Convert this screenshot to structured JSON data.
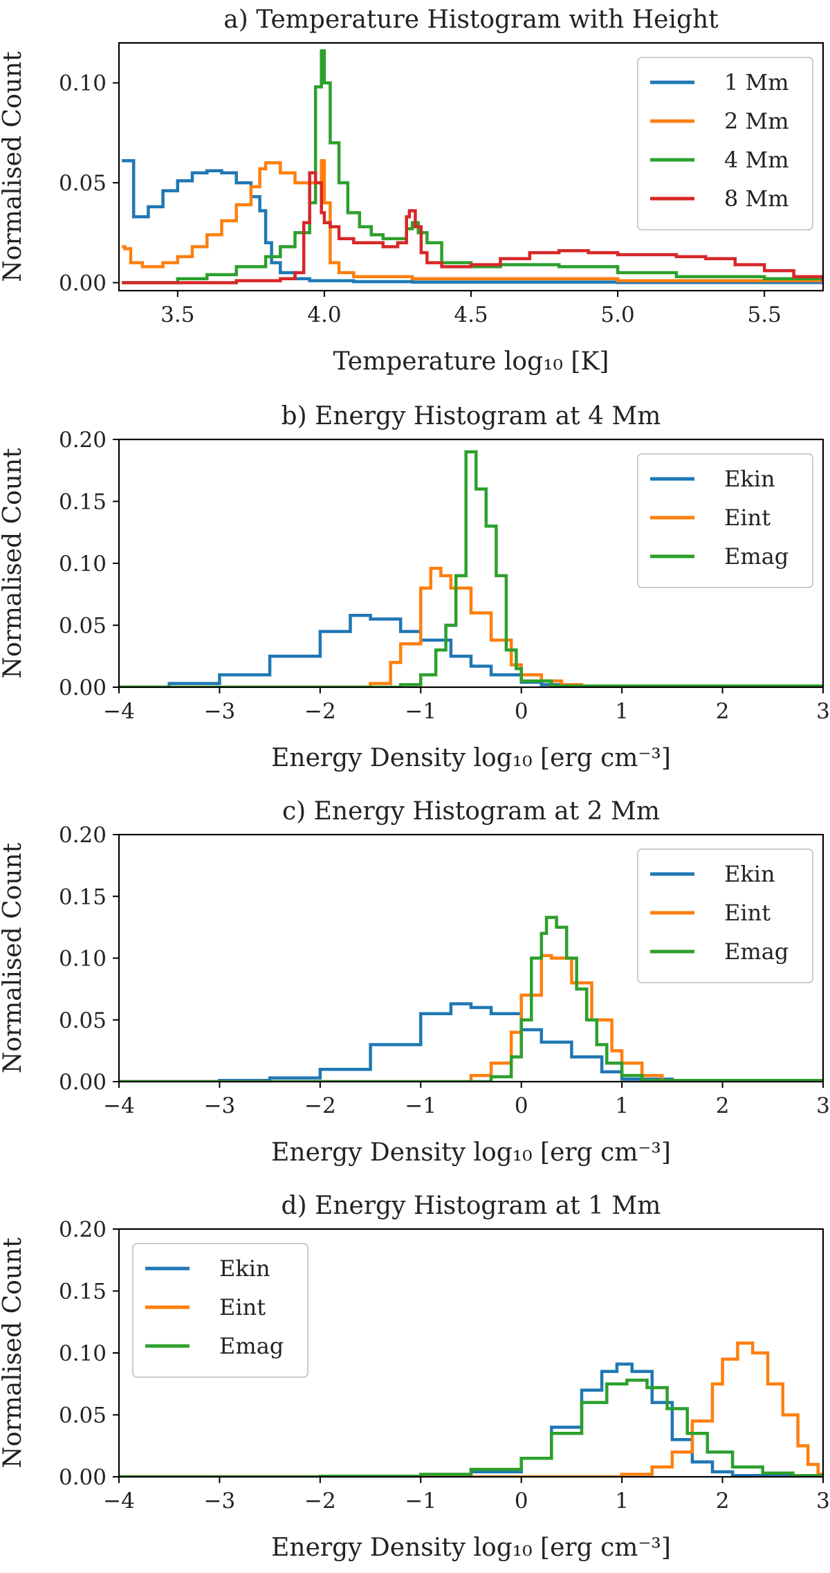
{
  "chart_data": [
    {
      "type": "line",
      "title": "a) Temperature Histogram with Height",
      "xlabel": "Temperature log₁₀ [K]",
      "ylabel": "Normalised Count",
      "xlim": [
        3.3,
        5.7
      ],
      "ylim": [
        -0.004,
        0.12
      ],
      "xticks": [
        3.5,
        4.0,
        4.5,
        5.0,
        5.5
      ],
      "xtick_labels": [
        "3.5",
        "4.0",
        "4.5",
        "5.0",
        "5.5"
      ],
      "yticks": [
        0.0,
        0.05,
        0.1
      ],
      "ytick_labels": [
        "0.00",
        "0.05",
        "0.10"
      ],
      "legend_position": "top-right",
      "series": [
        {
          "name": "1 Mm",
          "color": "#1f77b4",
          "x": [
            3.31,
            3.33,
            3.35,
            3.4,
            3.45,
            3.5,
            3.55,
            3.6,
            3.65,
            3.7,
            3.75,
            3.78,
            3.8,
            3.82,
            3.85,
            3.9,
            3.95,
            4.0,
            4.1,
            4.3,
            5.0,
            5.7
          ],
          "values": [
            0.061,
            0.061,
            0.033,
            0.038,
            0.046,
            0.051,
            0.055,
            0.056,
            0.055,
            0.05,
            0.043,
            0.036,
            0.02,
            0.01,
            0.005,
            0.002,
            0.001,
            0.001,
            0.0005,
            0.0003,
            0.0001,
            0.0
          ]
        },
        {
          "name": "2 Mm",
          "color": "#ff7f0e",
          "x": [
            3.31,
            3.32,
            3.34,
            3.38,
            3.45,
            3.5,
            3.55,
            3.6,
            3.65,
            3.7,
            3.75,
            3.78,
            3.8,
            3.85,
            3.9,
            3.95,
            3.99,
            4.0,
            4.02,
            4.05,
            4.1,
            4.3,
            5.0,
            5.7
          ],
          "values": [
            0.018,
            0.017,
            0.01,
            0.008,
            0.01,
            0.013,
            0.018,
            0.024,
            0.031,
            0.039,
            0.048,
            0.057,
            0.06,
            0.055,
            0.05,
            0.05,
            0.061,
            0.04,
            0.01,
            0.005,
            0.003,
            0.002,
            0.001,
            0.0
          ]
        },
        {
          "name": "4 Mm",
          "color": "#2ca02c",
          "x": [
            3.31,
            3.4,
            3.5,
            3.6,
            3.7,
            3.8,
            3.85,
            3.9,
            3.95,
            3.97,
            3.99,
            4.0,
            4.02,
            4.05,
            4.08,
            4.12,
            4.16,
            4.2,
            4.25,
            4.28,
            4.3,
            4.32,
            4.35,
            4.4,
            4.5,
            4.6,
            4.7,
            4.8,
            5.0,
            5.2,
            5.5,
            5.7
          ],
          "values": [
            0.0,
            0.0,
            0.002,
            0.004,
            0.008,
            0.013,
            0.018,
            0.025,
            0.04,
            0.098,
            0.116,
            0.1,
            0.07,
            0.05,
            0.035,
            0.028,
            0.024,
            0.022,
            0.022,
            0.027,
            0.03,
            0.025,
            0.02,
            0.01,
            0.008,
            0.009,
            0.009,
            0.008,
            0.005,
            0.003,
            0.002,
            0.001
          ]
        },
        {
          "name": "8 Mm",
          "color": "#d62728",
          "x": [
            3.31,
            3.5,
            3.7,
            3.85,
            3.9,
            3.93,
            3.95,
            3.97,
            3.99,
            4.0,
            4.02,
            4.05,
            4.1,
            4.2,
            4.25,
            4.28,
            4.29,
            4.31,
            4.33,
            4.35,
            4.4,
            4.5,
            4.6,
            4.7,
            4.8,
            4.9,
            5.0,
            5.1,
            5.2,
            5.3,
            5.4,
            5.5,
            5.6,
            5.7
          ],
          "values": [
            0.0,
            0.0,
            0.001,
            0.002,
            0.005,
            0.03,
            0.055,
            0.05,
            0.035,
            0.03,
            0.028,
            0.022,
            0.02,
            0.018,
            0.02,
            0.033,
            0.036,
            0.028,
            0.015,
            0.01,
            0.008,
            0.009,
            0.012,
            0.015,
            0.016,
            0.015,
            0.014,
            0.014,
            0.013,
            0.012,
            0.009,
            0.006,
            0.003,
            0.001
          ]
        }
      ]
    },
    {
      "type": "line",
      "title": "b) Energy Histogram at 4 Mm",
      "xlabel": "Energy Density log₁₀ [erg cm⁻³]",
      "ylabel": "Normalised Count",
      "xlim": [
        -4,
        3
      ],
      "ylim": [
        0,
        0.2
      ],
      "xticks": [
        -4,
        -3,
        -2,
        -1,
        0,
        1,
        2,
        3
      ],
      "xtick_labels": [
        "−4",
        "−3",
        "−2",
        "−1",
        "0",
        "1",
        "2",
        "3"
      ],
      "yticks": [
        0.0,
        0.05,
        0.1,
        0.15,
        0.2
      ],
      "ytick_labels": [
        "0.00",
        "0.05",
        "0.10",
        "0.15",
        "0.20"
      ],
      "legend_position": "top-right",
      "series": [
        {
          "name": "Ekin",
          "color": "#1f77b4",
          "x": [
            -4.0,
            -3.5,
            -3.0,
            -2.5,
            -2.0,
            -1.7,
            -1.5,
            -1.2,
            -1.0,
            -0.7,
            -0.5,
            -0.3,
            0.0,
            0.2,
            0.5,
            3.0
          ],
          "values": [
            0.0,
            0.003,
            0.01,
            0.025,
            0.045,
            0.058,
            0.055,
            0.045,
            0.038,
            0.025,
            0.017,
            0.01,
            0.004,
            0.002,
            0.0,
            0.0
          ]
        },
        {
          "name": "Eint",
          "color": "#ff7f0e",
          "x": [
            -4.0,
            -1.7,
            -1.5,
            -1.3,
            -1.2,
            -1.0,
            -0.9,
            -0.8,
            -0.7,
            -0.5,
            -0.3,
            -0.1,
            0.0,
            0.2,
            0.4,
            0.6,
            3.0
          ],
          "values": [
            0.0,
            0.0,
            0.003,
            0.02,
            0.035,
            0.08,
            0.096,
            0.09,
            0.08,
            0.06,
            0.038,
            0.018,
            0.01,
            0.005,
            0.002,
            0.001,
            0.0
          ]
        },
        {
          "name": "Emag",
          "color": "#2ca02c",
          "x": [
            -4.0,
            -1.5,
            -1.2,
            -1.0,
            -0.85,
            -0.75,
            -0.65,
            -0.55,
            -0.45,
            -0.35,
            -0.25,
            -0.15,
            -0.05,
            0.0,
            0.3,
            3.0
          ],
          "values": [
            0.0,
            0.0,
            0.002,
            0.01,
            0.03,
            0.05,
            0.09,
            0.19,
            0.16,
            0.13,
            0.09,
            0.03,
            0.015,
            0.005,
            0.001,
            0.0
          ]
        }
      ]
    },
    {
      "type": "line",
      "title": "c) Energy Histogram at 2 Mm",
      "xlabel": "Energy Density log₁₀ [erg cm⁻³]",
      "ylabel": "Normalised Count",
      "xlim": [
        -4,
        3
      ],
      "ylim": [
        0,
        0.2
      ],
      "xticks": [
        -4,
        -3,
        -2,
        -1,
        0,
        1,
        2,
        3
      ],
      "xtick_labels": [
        "−4",
        "−3",
        "−2",
        "−1",
        "0",
        "1",
        "2",
        "3"
      ],
      "yticks": [
        0.0,
        0.05,
        0.1,
        0.15,
        0.2
      ],
      "ytick_labels": [
        "0.00",
        "0.05",
        "0.10",
        "0.15",
        "0.20"
      ],
      "legend_position": "top-right",
      "series": [
        {
          "name": "Ekin",
          "color": "#1f77b4",
          "x": [
            -4.0,
            -3.0,
            -2.5,
            -2.0,
            -1.5,
            -1.0,
            -0.7,
            -0.5,
            -0.3,
            0.0,
            0.2,
            0.5,
            0.8,
            1.0,
            1.5,
            3.0
          ],
          "values": [
            0.0,
            0.001,
            0.003,
            0.01,
            0.03,
            0.055,
            0.063,
            0.06,
            0.055,
            0.042,
            0.032,
            0.02,
            0.008,
            0.002,
            0.0,
            0.0
          ]
        },
        {
          "name": "Eint",
          "color": "#ff7f0e",
          "x": [
            -4.0,
            -0.8,
            -0.5,
            -0.3,
            -0.1,
            0.0,
            0.2,
            0.3,
            0.5,
            0.7,
            0.9,
            1.0,
            1.2,
            1.4,
            3.0
          ],
          "values": [
            0.0,
            0.0,
            0.005,
            0.015,
            0.04,
            0.07,
            0.102,
            0.1,
            0.08,
            0.05,
            0.025,
            0.015,
            0.005,
            0.001,
            0.0
          ]
        },
        {
          "name": "Emag",
          "color": "#2ca02c",
          "x": [
            -4.0,
            -0.5,
            -0.3,
            -0.1,
            0.0,
            0.1,
            0.2,
            0.25,
            0.35,
            0.45,
            0.55,
            0.65,
            0.75,
            0.85,
            1.0,
            1.2,
            3.0
          ],
          "values": [
            0.0,
            0.0,
            0.004,
            0.02,
            0.05,
            0.1,
            0.12,
            0.133,
            0.125,
            0.1,
            0.075,
            0.05,
            0.03,
            0.015,
            0.005,
            0.001,
            0.0
          ]
        }
      ]
    },
    {
      "type": "line",
      "title": "d) Energy Histogram at 1 Mm",
      "xlabel": "Energy Density log₁₀ [erg cm⁻³]",
      "ylabel": "Normalised Count",
      "xlim": [
        -4,
        3
      ],
      "ylim": [
        0,
        0.2
      ],
      "xticks": [
        -4,
        -3,
        -2,
        -1,
        0,
        1,
        2,
        3
      ],
      "xtick_labels": [
        "−4",
        "−3",
        "−2",
        "−1",
        "0",
        "1",
        "2",
        "3"
      ],
      "yticks": [
        0.0,
        0.05,
        0.1,
        0.15,
        0.2
      ],
      "ytick_labels": [
        "0.00",
        "0.05",
        "0.10",
        "0.15",
        "0.20"
      ],
      "legend_position": "top-left",
      "series": [
        {
          "name": "Ekin",
          "color": "#1f77b4",
          "x": [
            -4.0,
            -1.5,
            -1.0,
            -0.5,
            0.0,
            0.3,
            0.6,
            0.8,
            0.95,
            1.1,
            1.3,
            1.5,
            1.7,
            1.9,
            2.1,
            3.0
          ],
          "values": [
            0.0,
            0.0,
            0.001,
            0.004,
            0.015,
            0.04,
            0.07,
            0.085,
            0.091,
            0.085,
            0.06,
            0.03,
            0.012,
            0.004,
            0.001,
            0.0
          ]
        },
        {
          "name": "Eint",
          "color": "#ff7f0e",
          "x": [
            -4.0,
            0.5,
            1.0,
            1.3,
            1.5,
            1.7,
            1.9,
            2.0,
            2.15,
            2.3,
            2.45,
            2.6,
            2.75,
            2.85,
            2.95,
            3.0
          ],
          "values": [
            0.0,
            0.0,
            0.002,
            0.008,
            0.02,
            0.045,
            0.075,
            0.095,
            0.108,
            0.1,
            0.075,
            0.05,
            0.025,
            0.01,
            0.002,
            0.0
          ]
        },
        {
          "name": "Emag",
          "color": "#2ca02c",
          "x": [
            -4.0,
            -2.0,
            -1.0,
            -0.5,
            0.0,
            0.3,
            0.6,
            0.85,
            1.05,
            1.25,
            1.45,
            1.65,
            1.85,
            2.1,
            2.4,
            2.7,
            3.0
          ],
          "values": [
            0.0,
            0.0005,
            0.002,
            0.006,
            0.015,
            0.035,
            0.06,
            0.075,
            0.078,
            0.072,
            0.055,
            0.035,
            0.02,
            0.008,
            0.003,
            0.001,
            0.0
          ]
        }
      ]
    }
  ]
}
